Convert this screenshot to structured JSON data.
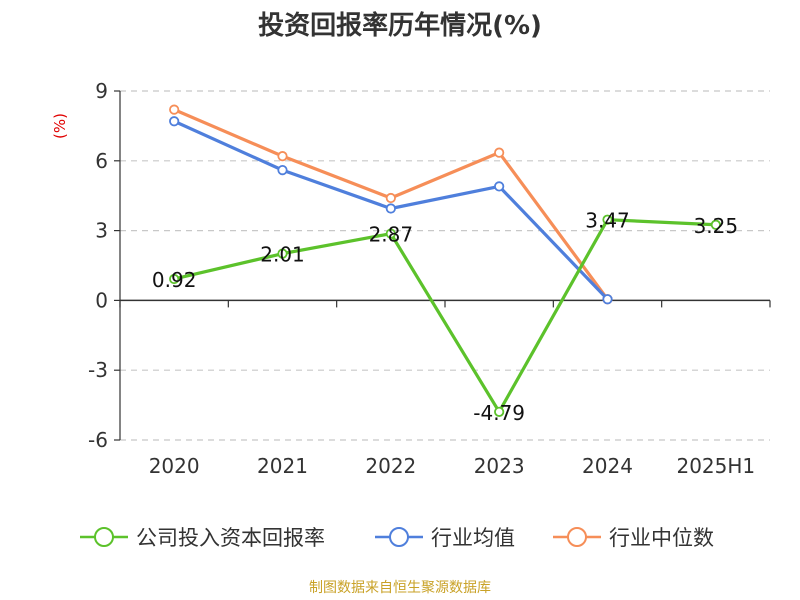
{
  "chart_data": {
    "type": "line",
    "title": "投资回报率历年情况(%)",
    "unit_label": "(%)",
    "categories": [
      "2020",
      "2021",
      "2022",
      "2023",
      "2024",
      "2025H1"
    ],
    "ylim": [
      -6,
      9
    ],
    "yticks": [
      9,
      6,
      3,
      0,
      -3,
      -6
    ],
    "grid": true,
    "legend_position": "bottom",
    "series": [
      {
        "name": "公司投入资本回报率",
        "color": "#5cc22b",
        "values": [
          0.92,
          2.01,
          2.87,
          -4.79,
          3.47,
          3.25
        ],
        "labels": [
          "0.92",
          "2.01",
          "2.87",
          "-4.79",
          "3.47",
          "3.25"
        ]
      },
      {
        "name": "行业均值",
        "color": "#4f7fdc",
        "values": [
          7.7,
          5.6,
          3.95,
          4.9,
          0.05,
          null
        ]
      },
      {
        "name": "行业中位数",
        "color": "#f68e58",
        "values": [
          8.2,
          6.2,
          4.4,
          6.35,
          0.05,
          null
        ]
      }
    ]
  },
  "source": "制图数据来自恒生聚源数据库"
}
